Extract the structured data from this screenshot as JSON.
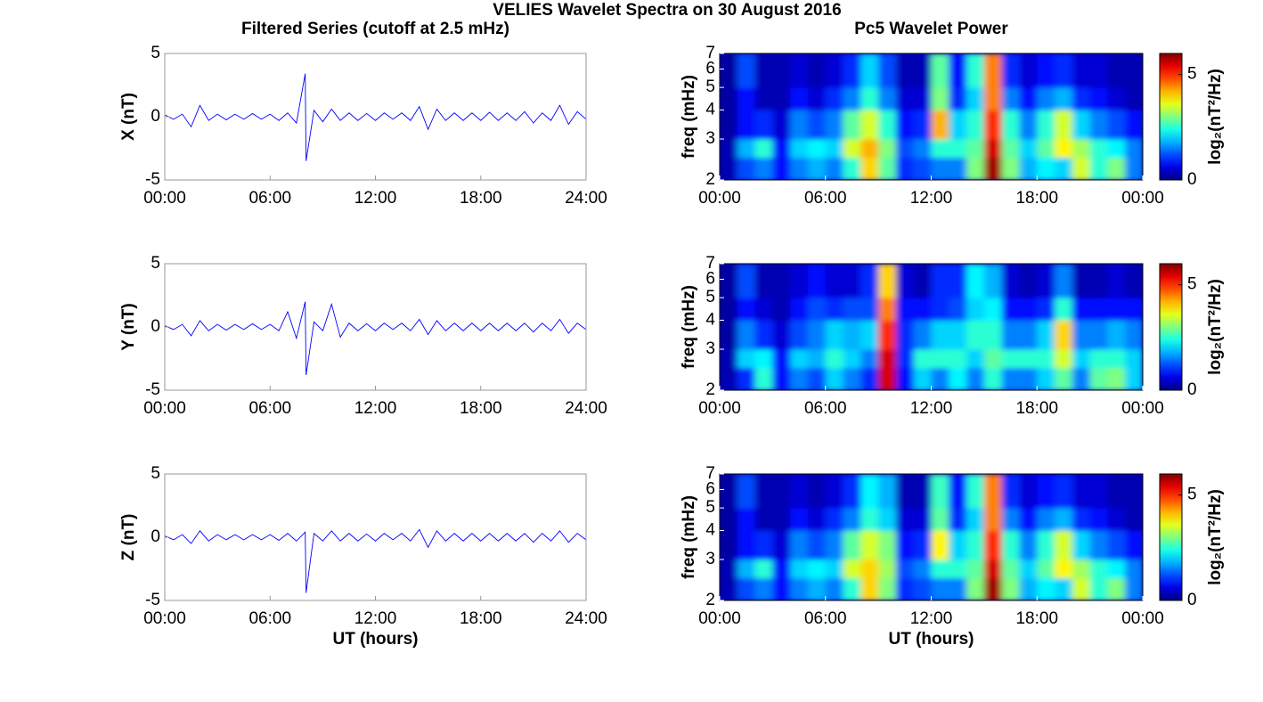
{
  "title": "VELIES Wavelet Spectra on 30 August 2016",
  "chart_data": [
    {
      "type": "line",
      "title": "Filtered Series (cutoff at 2.5 mHz)",
      "ylabel": "X (nT)",
      "color": "#0000ff",
      "x": [
        0,
        0.5,
        1,
        1.5,
        2,
        2.5,
        3,
        3.5,
        4,
        4.5,
        5,
        5.5,
        6,
        6.5,
        7,
        7.5,
        8,
        8.05,
        8.5,
        9,
        9.5,
        10,
        10.5,
        11,
        11.5,
        12,
        12.5,
        13,
        13.5,
        14,
        14.5,
        15,
        15.5,
        16,
        16.5,
        17,
        17.5,
        18,
        18.5,
        19,
        19.5,
        20,
        20.5,
        21,
        21.5,
        22,
        22.5,
        23,
        23.5,
        24
      ],
      "values": [
        0.15,
        -0.2,
        0.2,
        -0.8,
        0.9,
        -0.3,
        0.2,
        -0.25,
        0.2,
        -0.2,
        0.25,
        -0.2,
        0.2,
        -0.3,
        0.3,
        -0.5,
        3.4,
        -3.5,
        0.5,
        -0.4,
        0.6,
        -0.3,
        0.3,
        -0.3,
        0.25,
        -0.3,
        0.3,
        -0.2,
        0.3,
        -0.3,
        0.8,
        -1.0,
        0.6,
        -0.3,
        0.3,
        -0.3,
        0.3,
        -0.3,
        0.35,
        -0.3,
        0.3,
        -0.3,
        0.4,
        -0.5,
        0.3,
        -0.3,
        0.9,
        -0.6,
        0.4,
        -0.2
      ],
      "xlim": [
        0,
        24
      ],
      "xticks": [
        {
          "value": 0,
          "label": "00:00"
        },
        {
          "value": 6,
          "label": "06:00"
        },
        {
          "value": 12,
          "label": "12:00"
        },
        {
          "value": 18,
          "label": "18:00"
        },
        {
          "value": 24,
          "label": "24:00"
        }
      ],
      "ylim": [
        -5,
        5
      ],
      "yticks": [
        -5,
        0,
        5
      ]
    },
    {
      "type": "heatmap",
      "title": "Pc5 Wavelet Power",
      "ylabel": "freq (mHz)",
      "colormap": "jet",
      "xbins": [
        0,
        1,
        2,
        3,
        4,
        5,
        6,
        7,
        8,
        9,
        10,
        11,
        12,
        13,
        14,
        15,
        16,
        17,
        18,
        19,
        20,
        21,
        22,
        23,
        24
      ],
      "ybins": [
        2,
        2.5,
        3,
        4,
        5,
        7
      ],
      "z": [
        [
          0.3,
          1.2,
          1.5,
          0.8,
          1.5,
          1.8,
          1.5,
          2.5,
          4.0,
          2.8,
          1.0,
          1.2,
          1.5,
          1.5,
          3.0,
          5.8,
          3.0,
          1.8,
          2.2,
          2.0,
          3.5,
          2.5,
          3.0,
          1.5
        ],
        [
          0.3,
          1.8,
          2.5,
          0.8,
          2.0,
          2.2,
          2.0,
          3.5,
          4.2,
          3.0,
          1.2,
          1.5,
          2.5,
          2.5,
          2.8,
          5.5,
          2.8,
          2.0,
          2.8,
          3.8,
          3.2,
          2.5,
          2.2,
          1.5
        ],
        [
          0.2,
          0.8,
          1.0,
          0.5,
          1.5,
          1.2,
          1.5,
          2.8,
          3.5,
          2.5,
          0.8,
          1.0,
          4.2,
          2.0,
          2.5,
          5.0,
          2.5,
          1.5,
          2.5,
          3.5,
          2.0,
          1.5,
          1.2,
          0.8
        ],
        [
          0.2,
          0.8,
          0.3,
          0.3,
          0.8,
          0.5,
          1.0,
          1.5,
          2.5,
          1.5,
          0.5,
          0.5,
          3.0,
          1.0,
          2.0,
          4.5,
          1.5,
          0.8,
          1.5,
          1.8,
          1.0,
          0.8,
          0.5,
          0.3
        ],
        [
          0.2,
          1.2,
          0.3,
          0.3,
          0.5,
          0.3,
          0.5,
          1.0,
          2.0,
          1.2,
          0.3,
          0.3,
          2.8,
          0.8,
          2.5,
          4.5,
          1.0,
          0.5,
          0.8,
          1.0,
          0.5,
          0.5,
          0.3,
          0.3
        ]
      ],
      "xlim": [
        0,
        24
      ],
      "xticks": [
        {
          "value": 0,
          "label": "00:00"
        },
        {
          "value": 6,
          "label": "06:00"
        },
        {
          "value": 12,
          "label": "12:00"
        },
        {
          "value": 18,
          "label": "18:00"
        },
        {
          "value": 24,
          "label": "00:00"
        }
      ],
      "ylim": [
        2,
        7
      ],
      "yticks": [
        2,
        3,
        4,
        5,
        6,
        7
      ],
      "ylog": true,
      "clim": [
        0,
        6
      ],
      "cticks": [
        0,
        5
      ],
      "clabel": "log₂(nT²/Hz)"
    },
    {
      "type": "line",
      "ylabel": "Y (nT)",
      "color": "#0000ff",
      "x": [
        0,
        0.5,
        1,
        1.5,
        2,
        2.5,
        3,
        3.5,
        4,
        4.5,
        5,
        5.5,
        6,
        6.5,
        7,
        7.5,
        8,
        8.05,
        8.5,
        9,
        9.5,
        10,
        10.5,
        11,
        11.5,
        12,
        12.5,
        13,
        13.5,
        14,
        14.5,
        15,
        15.5,
        16,
        16.5,
        17,
        17.5,
        18,
        18.5,
        19,
        19.5,
        20,
        20.5,
        21,
        21.5,
        22,
        22.5,
        23,
        23.5,
        24
      ],
      "values": [
        0.1,
        -0.2,
        0.2,
        -0.7,
        0.5,
        -0.3,
        0.2,
        -0.25,
        0.2,
        -0.2,
        0.25,
        -0.2,
        0.2,
        -0.3,
        1.2,
        -0.9,
        2.0,
        -3.8,
        0.4,
        -0.3,
        1.8,
        -0.8,
        0.3,
        -0.3,
        0.25,
        -0.3,
        0.3,
        -0.2,
        0.3,
        -0.3,
        0.6,
        -0.6,
        0.5,
        -0.3,
        0.3,
        -0.3,
        0.3,
        -0.3,
        0.3,
        -0.3,
        0.3,
        -0.3,
        0.3,
        -0.4,
        0.3,
        -0.3,
        0.6,
        -0.5,
        0.3,
        -0.2
      ],
      "xlim": [
        0,
        24
      ],
      "xticks": [
        {
          "value": 0,
          "label": "00:00"
        },
        {
          "value": 6,
          "label": "06:00"
        },
        {
          "value": 12,
          "label": "12:00"
        },
        {
          "value": 18,
          "label": "18:00"
        },
        {
          "value": 24,
          "label": "24:00"
        }
      ],
      "ylim": [
        -5,
        5
      ],
      "yticks": [
        -5,
        0,
        5
      ]
    },
    {
      "type": "heatmap",
      "ylabel": "freq (mHz)",
      "colormap": "jet",
      "xbins": [
        0,
        1,
        2,
        3,
        4,
        5,
        6,
        7,
        8,
        9,
        10,
        11,
        12,
        13,
        14,
        15,
        16,
        17,
        18,
        19,
        20,
        21,
        22,
        23,
        24
      ],
      "ybins": [
        2,
        2.5,
        3,
        4,
        5,
        7
      ],
      "z": [
        [
          0.3,
          1.0,
          2.5,
          0.8,
          1.5,
          1.2,
          2.0,
          1.5,
          1.0,
          5.5,
          0.8,
          2.0,
          1.5,
          2.2,
          1.5,
          2.5,
          1.5,
          1.5,
          2.0,
          2.8,
          1.5,
          2.8,
          3.0,
          2.0
        ],
        [
          0.3,
          2.0,
          2.2,
          0.8,
          2.0,
          1.8,
          2.5,
          2.0,
          1.5,
          5.5,
          1.0,
          2.5,
          2.5,
          2.5,
          2.0,
          2.8,
          2.5,
          2.5,
          2.5,
          3.5,
          2.0,
          2.5,
          2.5,
          2.0
        ],
        [
          0.2,
          1.5,
          1.0,
          0.5,
          1.2,
          1.5,
          2.0,
          1.8,
          2.0,
          5.0,
          1.0,
          1.5,
          2.0,
          2.0,
          2.5,
          2.5,
          1.5,
          1.5,
          2.0,
          4.0,
          1.5,
          1.5,
          1.8,
          1.5
        ],
        [
          0.2,
          0.8,
          0.5,
          0.3,
          0.8,
          1.2,
          1.0,
          1.2,
          1.2,
          4.5,
          0.8,
          0.8,
          1.0,
          1.2,
          2.0,
          2.2,
          0.8,
          0.8,
          1.0,
          2.5,
          0.8,
          0.8,
          0.8,
          0.8
        ],
        [
          0.2,
          1.2,
          0.3,
          0.3,
          0.5,
          0.8,
          0.5,
          0.5,
          1.0,
          4.0,
          0.5,
          0.3,
          1.0,
          1.0,
          2.2,
          1.8,
          0.5,
          0.3,
          0.5,
          1.5,
          0.3,
          0.3,
          0.5,
          0.3
        ]
      ],
      "xlim": [
        0,
        24
      ],
      "xticks": [
        {
          "value": 0,
          "label": "00:00"
        },
        {
          "value": 6,
          "label": "06:00"
        },
        {
          "value": 12,
          "label": "12:00"
        },
        {
          "value": 18,
          "label": "18:00"
        },
        {
          "value": 24,
          "label": "00:00"
        }
      ],
      "ylim": [
        2,
        7
      ],
      "yticks": [
        2,
        3,
        4,
        5,
        6,
        7
      ],
      "ylog": true,
      "clim": [
        0,
        6
      ],
      "cticks": [
        0,
        5
      ],
      "clabel": "log₂(nT²/Hz)"
    },
    {
      "type": "line",
      "ylabel": "Z (nT)",
      "xlabel": "UT (hours)",
      "color": "#0000ff",
      "x": [
        0,
        0.5,
        1,
        1.5,
        2,
        2.5,
        3,
        3.5,
        4,
        4.5,
        5,
        5.5,
        6,
        6.5,
        7,
        7.5,
        8,
        8.05,
        8.5,
        9,
        9.5,
        10,
        10.5,
        11,
        11.5,
        12,
        12.5,
        13,
        13.5,
        14,
        14.5,
        15,
        15.5,
        16,
        16.5,
        17,
        17.5,
        18,
        18.5,
        19,
        19.5,
        20,
        20.5,
        21,
        21.5,
        22,
        22.5,
        23,
        23.5,
        24
      ],
      "values": [
        0.1,
        -0.2,
        0.2,
        -0.5,
        0.5,
        -0.3,
        0.2,
        -0.2,
        0.2,
        -0.2,
        0.2,
        -0.2,
        0.2,
        -0.25,
        0.3,
        -0.3,
        0.4,
        -4.4,
        0.3,
        -0.3,
        0.5,
        -0.3,
        0.3,
        -0.3,
        0.25,
        -0.3,
        0.3,
        -0.2,
        0.3,
        -0.3,
        0.6,
        -0.8,
        0.5,
        -0.3,
        0.3,
        -0.3,
        0.3,
        -0.3,
        0.3,
        -0.3,
        0.3,
        -0.3,
        0.3,
        -0.4,
        0.3,
        -0.3,
        0.5,
        -0.4,
        0.3,
        -0.2
      ],
      "xlim": [
        0,
        24
      ],
      "xticks": [
        {
          "value": 0,
          "label": "00:00"
        },
        {
          "value": 6,
          "label": "06:00"
        },
        {
          "value": 12,
          "label": "12:00"
        },
        {
          "value": 18,
          "label": "18:00"
        },
        {
          "value": 24,
          "label": "24:00"
        }
      ],
      "ylim": [
        -5,
        5
      ],
      "yticks": [
        -5,
        0,
        5
      ]
    },
    {
      "type": "heatmap",
      "ylabel": "freq (mHz)",
      "xlabel": "UT (hours)",
      "colormap": "jet",
      "xbins": [
        0,
        1,
        2,
        3,
        4,
        5,
        6,
        7,
        8,
        9,
        10,
        11,
        12,
        13,
        14,
        15,
        16,
        17,
        18,
        19,
        20,
        21,
        22,
        23,
        24
      ],
      "ybins": [
        2,
        2.5,
        3,
        4,
        5,
        7
      ],
      "z": [
        [
          0.3,
          1.2,
          1.5,
          0.8,
          1.5,
          1.8,
          1.5,
          2.5,
          4.0,
          3.0,
          1.0,
          1.2,
          1.5,
          1.5,
          3.0,
          5.8,
          3.0,
          1.8,
          2.2,
          2.0,
          3.5,
          2.5,
          3.0,
          1.5
        ],
        [
          0.3,
          1.8,
          2.5,
          0.8,
          2.0,
          2.2,
          2.0,
          3.5,
          4.0,
          3.2,
          1.2,
          1.5,
          2.5,
          2.5,
          2.8,
          5.5,
          2.8,
          2.0,
          2.8,
          3.8,
          3.2,
          2.5,
          2.2,
          1.5
        ],
        [
          0.2,
          0.8,
          1.0,
          0.5,
          1.5,
          1.2,
          1.5,
          2.8,
          3.5,
          3.0,
          0.8,
          1.0,
          3.8,
          2.0,
          2.5,
          5.0,
          2.5,
          1.5,
          2.5,
          3.5,
          2.0,
          1.5,
          1.2,
          0.8
        ],
        [
          0.2,
          0.8,
          0.3,
          0.3,
          0.8,
          0.5,
          1.0,
          1.5,
          2.5,
          2.0,
          0.5,
          0.5,
          2.8,
          1.0,
          2.0,
          4.5,
          1.5,
          0.8,
          1.5,
          1.8,
          1.0,
          0.8,
          0.5,
          0.3
        ],
        [
          0.2,
          1.2,
          0.3,
          0.3,
          0.5,
          0.3,
          0.5,
          1.0,
          2.2,
          1.8,
          0.3,
          0.3,
          2.6,
          0.8,
          2.5,
          4.5,
          1.0,
          0.5,
          0.8,
          1.0,
          0.5,
          0.5,
          0.3,
          0.3
        ]
      ],
      "xlim": [
        0,
        24
      ],
      "xticks": [
        {
          "value": 0,
          "label": "00:00"
        },
        {
          "value": 6,
          "label": "06:00"
        },
        {
          "value": 12,
          "label": "12:00"
        },
        {
          "value": 18,
          "label": "18:00"
        },
        {
          "value": 24,
          "label": "00:00"
        }
      ],
      "ylim": [
        2,
        7
      ],
      "yticks": [
        2,
        3,
        4,
        5,
        6,
        7
      ],
      "ylog": true,
      "clim": [
        0,
        6
      ],
      "cticks": [
        0,
        5
      ],
      "clabel": "log₂(nT²/Hz)"
    }
  ]
}
